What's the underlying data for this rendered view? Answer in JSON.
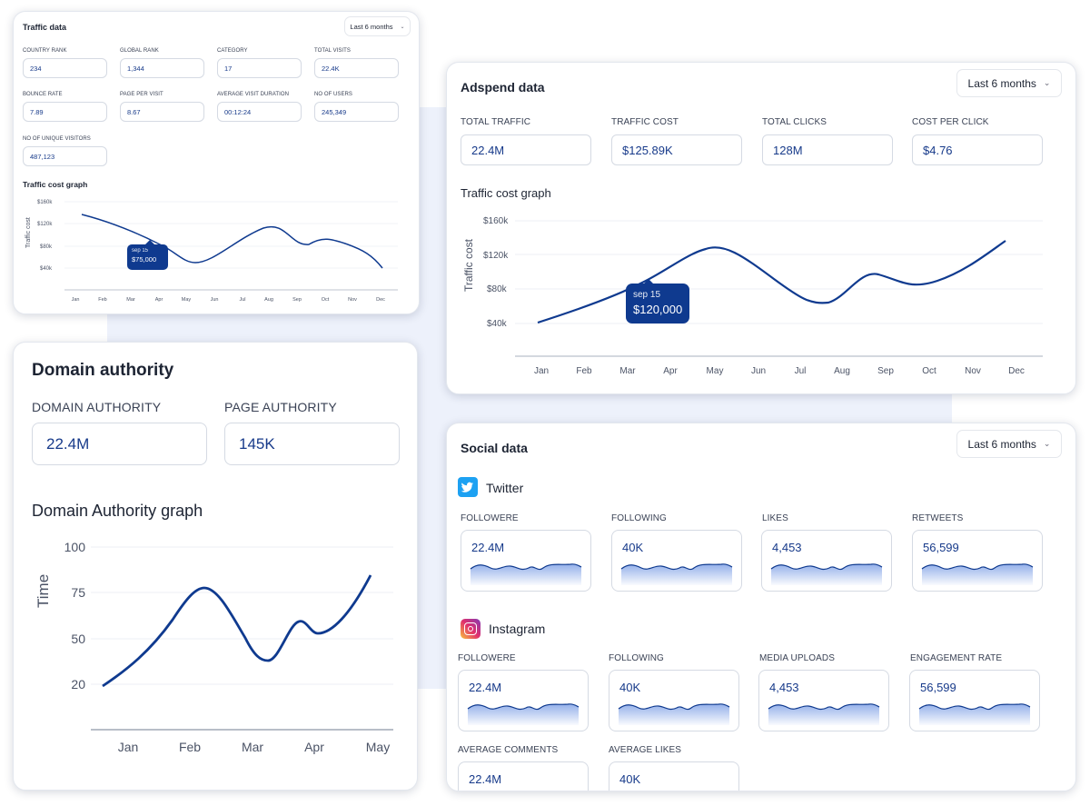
{
  "traffic": {
    "title": "Traffic data",
    "period": "Last 6 months",
    "stats": [
      {
        "label": "COUNTRY RANK",
        "value": "234"
      },
      {
        "label": "GLOBAL RANK",
        "value": "1,344"
      },
      {
        "label": "CATEGORY",
        "value": "17"
      },
      {
        "label": "TOTAL VISITS",
        "value": "22.4K"
      },
      {
        "label": "BOUNCE RATE",
        "value": "7.89"
      },
      {
        "label": "PAGE PER VISIT",
        "value": "8.67"
      },
      {
        "label": "AVERAGE VISIT DURATION",
        "value": "00:12:24"
      },
      {
        "label": "NO OF USERS",
        "value": "245,349"
      },
      {
        "label": "NO OF UNIQUE VISITORS",
        "value": "487,123"
      }
    ],
    "graph_title": "Traffic cost graph",
    "ylabel": "Traffic cost",
    "yticks": [
      "$160k",
      "$120k",
      "$80k",
      "$40k"
    ],
    "months": [
      "Jan",
      "Feb",
      "Mar",
      "Apr",
      "May",
      "Jun",
      "Jul",
      "Aug",
      "Sep",
      "Oct",
      "Nov",
      "Dec"
    ],
    "tooltip_date": "sep 15",
    "tooltip_value": "$75,000"
  },
  "adspend": {
    "title": "Adspend data",
    "period": "Last 6 months",
    "stats": [
      {
        "label": "TOTAL TRAFFIC",
        "value": "22.4M"
      },
      {
        "label": "TRAFFIC COST",
        "value": "$125.89K"
      },
      {
        "label": "TOTAL CLICKS",
        "value": "128M"
      },
      {
        "label": "COST PER CLICK",
        "value": "$4.76"
      }
    ],
    "graph_title": "Traffic cost graph",
    "ylabel": "Traffic cost",
    "yticks": [
      "$160k",
      "$120k",
      "$80k",
      "$40k"
    ],
    "months": [
      "Jan",
      "Feb",
      "Mar",
      "Apr",
      "May",
      "Jun",
      "Jul",
      "Aug",
      "Sep",
      "Oct",
      "Nov",
      "Dec"
    ],
    "tooltip_date": "sep 15",
    "tooltip_value": "$120,000"
  },
  "domain": {
    "title": "Domain authority",
    "stats": [
      {
        "label": "DOMAIN AUTHORITY",
        "value": "22.4M"
      },
      {
        "label": "PAGE AUTHORITY",
        "value": "145K"
      }
    ],
    "graph_title": "Domain Authority graph",
    "ylabel": "Time",
    "yticks": [
      "100",
      "75",
      "50",
      "20"
    ],
    "months": [
      "Jan",
      "Feb",
      "Mar",
      "Apr",
      "May"
    ]
  },
  "social": {
    "title": "Social data",
    "period": "Last 6 months",
    "twitter": {
      "name": "Twitter",
      "stats": [
        {
          "label": "FOLLOWERE",
          "value": "22.4M"
        },
        {
          "label": "FOLLOWING",
          "value": "40K"
        },
        {
          "label": "LIKES",
          "value": "4,453"
        },
        {
          "label": "RETWEETS",
          "value": "56,599"
        }
      ]
    },
    "instagram": {
      "name": "Instagram",
      "stats": [
        {
          "label": "FOLLOWERE",
          "value": "22.4M"
        },
        {
          "label": "FOLLOWING",
          "value": "40K"
        },
        {
          "label": "MEDIA UPLOADS",
          "value": "4,453"
        },
        {
          "label": "ENGAGEMENT RATE",
          "value": "56,599"
        },
        {
          "label": "AVERAGE COMMENTS",
          "value": "22.4M"
        },
        {
          "label": "AVERAGE LIKES",
          "value": "40K"
        }
      ]
    }
  },
  "colors": {
    "accent": "#0f3a8f",
    "value": "#173a8a",
    "background": "#edf1fb"
  }
}
